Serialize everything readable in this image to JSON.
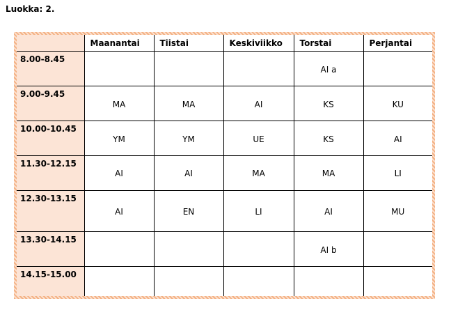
{
  "title": "Luokka: 2.",
  "days": [
    "Maanantai",
    "Tiistai",
    "Keskiviikko",
    "Torstai",
    "Perjantai"
  ],
  "rows": [
    {
      "time": "8.00-8.45",
      "cells": [
        "",
        "",
        "",
        "AI a",
        ""
      ]
    },
    {
      "time": "9.00-9.45",
      "cells": [
        "MA",
        "MA",
        "AI",
        "KS",
        "KU"
      ]
    },
    {
      "time": "10.00-10.45",
      "cells": [
        "YM",
        "YM",
        "UE",
        "KS",
        "AI"
      ]
    },
    {
      "time": "11.30-12.15",
      "cells": [
        "AI",
        "AI",
        "MA",
        "MA",
        "LI"
      ]
    },
    {
      "time": "12.30-13.15",
      "cells": [
        "AI",
        "EN",
        "LI",
        "AI",
        "MU"
      ]
    },
    {
      "time": "13.30-14.15",
      "cells": [
        "",
        "",
        "",
        "AI b",
        ""
      ]
    },
    {
      "time": "14.15-15.00",
      "cells": [
        "",
        "",
        "",
        "",
        ""
      ]
    }
  ]
}
